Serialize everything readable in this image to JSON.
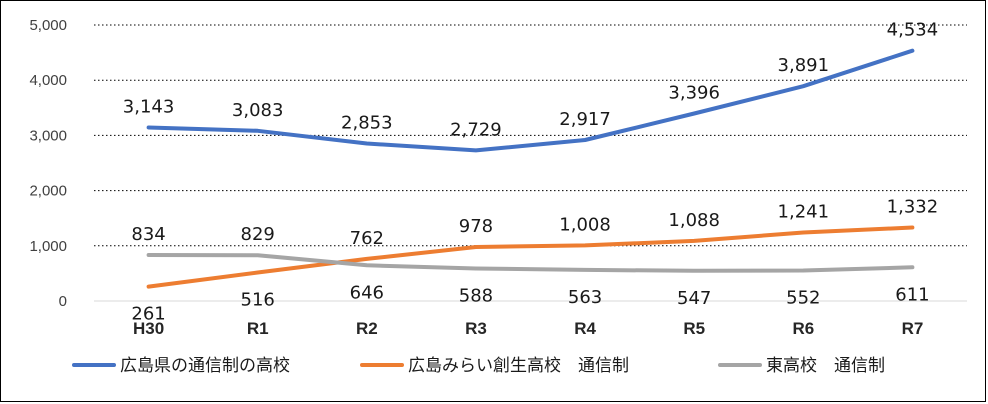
{
  "chart_data": {
    "type": "line",
    "title": "",
    "xlabel": "",
    "ylabel": "",
    "categories": [
      "H30",
      "R1",
      "R2",
      "R3",
      "R4",
      "R5",
      "R6",
      "R7"
    ],
    "ylim": [
      0,
      5000
    ],
    "yticks": [
      0,
      1000,
      2000,
      3000,
      4000,
      5000
    ],
    "ytick_labels": [
      "0",
      "1,000",
      "2,000",
      "3,000",
      "4,000",
      "5,000"
    ],
    "grid": "horizontal-dotted",
    "legend_position": "bottom",
    "series": [
      {
        "name": "広島県の通信制の高校",
        "color": "#4472C4",
        "values": [
          3143,
          3083,
          2853,
          2729,
          2917,
          3396,
          3891,
          4534
        ],
        "labels": [
          "3,143",
          "3,083",
          "2,853",
          "2,729",
          "2,917",
          "3,396",
          "3,891",
          "4,534"
        ],
        "label_position": "above"
      },
      {
        "name": "広島みらい創生高校　通信制",
        "color": "#ED7D31",
        "values": [
          261,
          516,
          762,
          978,
          1008,
          1088,
          1241,
          1332
        ],
        "labels": [
          "261",
          "516",
          "762",
          "978",
          "1,008",
          "1,088",
          "1,241",
          "1,332"
        ],
        "label_position": [
          "below",
          "below",
          "above",
          "above",
          "above",
          "above",
          "above",
          "above"
        ]
      },
      {
        "name": "東高校　通信制",
        "color": "#A5A5A5",
        "values": [
          834,
          829,
          646,
          588,
          563,
          547,
          552,
          611
        ],
        "labels": [
          "834",
          "829",
          "646",
          "588",
          "563",
          "547",
          "552",
          "611"
        ],
        "label_position": [
          "above",
          "above",
          "below",
          "below",
          "below",
          "below",
          "below",
          "below"
        ]
      }
    ]
  }
}
